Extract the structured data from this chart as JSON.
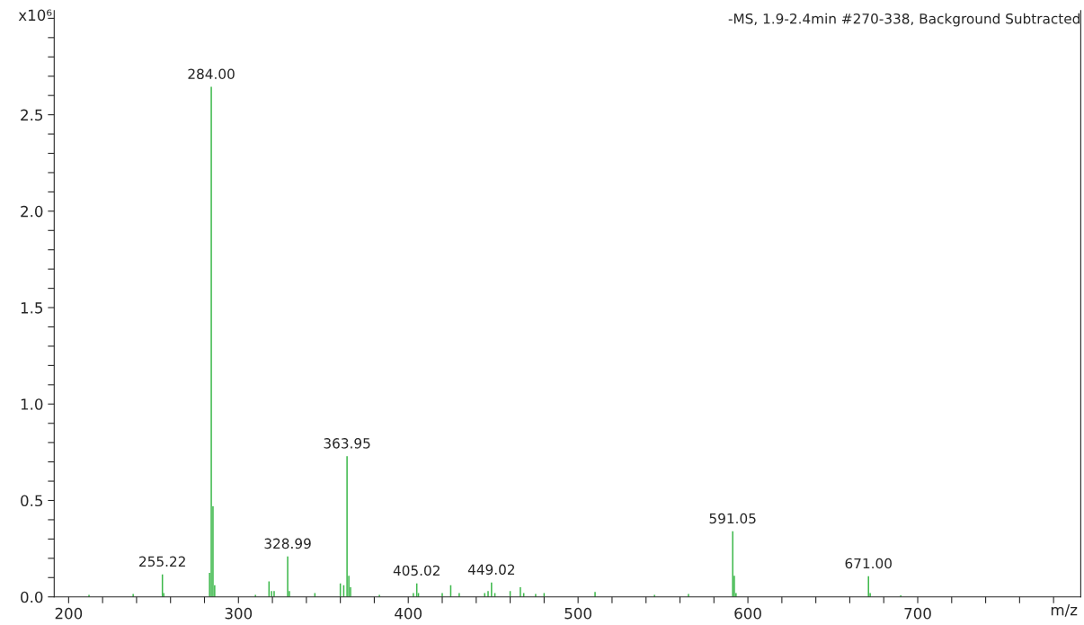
{
  "chart_data": {
    "type": "bar",
    "title": "-MS, 1.9-2.4min #270-338, Background Subtracted",
    "xlabel": "m/z",
    "ylabel": "x10⁶",
    "x": [
      212,
      238,
      255.22,
      256,
      283,
      284.0,
      285,
      286,
      310,
      318,
      319.5,
      321,
      328.99,
      330,
      345,
      360,
      362,
      363.95,
      365,
      366,
      383,
      403,
      405.02,
      406,
      420,
      425,
      430,
      445,
      447,
      449.02,
      451,
      460,
      466,
      468,
      475,
      480,
      510,
      545,
      565,
      591.05,
      592,
      593,
      671.0,
      672,
      690
    ],
    "values": [
      0.01,
      0.015,
      0.117,
      0.02,
      0.125,
      2.645,
      0.47,
      0.06,
      0.01,
      0.08,
      0.03,
      0.03,
      0.21,
      0.03,
      0.02,
      0.07,
      0.06,
      0.73,
      0.11,
      0.05,
      0.01,
      0.02,
      0.07,
      0.02,
      0.02,
      0.06,
      0.02,
      0.02,
      0.03,
      0.075,
      0.02,
      0.03,
      0.05,
      0.02,
      0.015,
      0.02,
      0.025,
      0.01,
      0.015,
      0.34,
      0.11,
      0.02,
      0.107,
      0.02,
      0.008
    ],
    "color": "#3cb84a",
    "annotations": [
      {
        "text": "255.22",
        "x": 255.22,
        "y": 0.117
      },
      {
        "text": "284.00",
        "x": 284.0,
        "y": 2.645
      },
      {
        "text": "328.99",
        "x": 328.99,
        "y": 0.21
      },
      {
        "text": "363.95",
        "x": 363.95,
        "y": 0.73
      },
      {
        "text": "405.02",
        "x": 405.02,
        "y": 0.07
      },
      {
        "text": "449.02",
        "x": 449.02,
        "y": 0.075
      },
      {
        "text": "591.05",
        "x": 591.05,
        "y": 0.34
      },
      {
        "text": "671.00",
        "x": 671.0,
        "y": 0.107
      }
    ],
    "xlim": [
      191.5,
      796
    ],
    "xticks": [
      200,
      {
        "value": 220,
        "label": null
      },
      {
        "value": 240,
        "label": null
      },
      {
        "value": 260,
        "label": null
      },
      {
        "value": 280,
        "label": null
      },
      300,
      {
        "value": 320,
        "label": null
      },
      {
        "value": 340,
        "label": null
      },
      {
        "value": 360,
        "label": null
      },
      {
        "value": 380,
        "label": null
      },
      400,
      {
        "value": 420,
        "label": null
      },
      {
        "value": 440,
        "label": null
      },
      {
        "value": 460,
        "label": null
      },
      {
        "value": 480,
        "label": null
      },
      500,
      {
        "value": 520,
        "label": null
      },
      {
        "value": 540,
        "label": null
      },
      {
        "value": 560,
        "label": null
      },
      {
        "value": 580,
        "label": null
      },
      600,
      {
        "value": 620,
        "label": null
      },
      {
        "value": 640,
        "label": null
      },
      {
        "value": 660,
        "label": null
      },
      {
        "value": 680,
        "label": null
      },
      700,
      {
        "value": 720,
        "label": null
      },
      {
        "value": 740,
        "label": null
      },
      {
        "value": 760,
        "label": null
      },
      {
        "value": 780,
        "label": null
      }
    ],
    "ylim": [
      0,
      3.04
    ],
    "yticks": [
      {
        "value": 0,
        "label": "0.0"
      },
      {
        "value": 0.1,
        "label": null
      },
      {
        "value": 0.2,
        "label": null
      },
      {
        "value": 0.3,
        "label": null
      },
      {
        "value": 0.4,
        "label": null
      },
      0.5,
      {
        "value": 0.6,
        "label": null
      },
      {
        "value": 0.7,
        "label": null
      },
      {
        "value": 0.8,
        "label": null
      },
      {
        "value": 0.9,
        "label": null
      },
      {
        "value": 1.0,
        "label": "1.0"
      },
      {
        "value": 1.1,
        "label": null
      },
      {
        "value": 1.2,
        "label": null
      },
      {
        "value": 1.3,
        "label": null
      },
      {
        "value": 1.4,
        "label": null
      },
      1.5,
      {
        "value": 1.6,
        "label": null
      },
      {
        "value": 1.7,
        "label": null
      },
      {
        "value": 1.8,
        "label": null
      },
      {
        "value": 1.9,
        "label": null
      },
      {
        "value": 2.0,
        "label": "2.0"
      },
      {
        "value": 2.1,
        "label": null
      },
      {
        "value": 2.2,
        "label": null
      },
      {
        "value": 2.3,
        "label": null
      },
      {
        "value": 2.4,
        "label": null
      },
      2.5,
      {
        "value": 2.6,
        "label": null
      },
      {
        "value": 2.7,
        "label": null
      },
      {
        "value": 2.8,
        "label": null
      },
      {
        "value": 2.9,
        "label": null
      },
      {
        "value": 3.0,
        "label": null
      }
    ],
    "grid": false
  }
}
